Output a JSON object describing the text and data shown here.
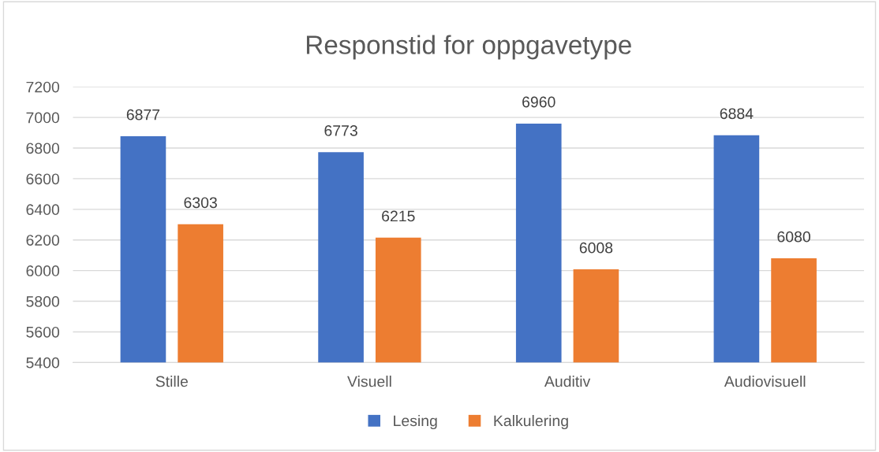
{
  "chart_data": {
    "type": "bar",
    "title": "Responstid for oppgavetype",
    "categories": [
      "Stille",
      "Visuell",
      "Auditiv",
      "Audiovisuell"
    ],
    "series": [
      {
        "name": "Lesing",
        "color": "#4472c4",
        "values": [
          6877,
          6773,
          6960,
          6884
        ]
      },
      {
        "name": "Kalkulering",
        "color": "#ed7d31",
        "values": [
          6303,
          6215,
          6008,
          6080
        ]
      }
    ],
    "ylim": [
      5400,
      7200
    ],
    "yticks": [
      5400,
      5600,
      5800,
      6000,
      6200,
      6400,
      6600,
      6800,
      7000,
      7200
    ],
    "grid": "y",
    "legend": "bottom",
    "data_labels": true
  }
}
